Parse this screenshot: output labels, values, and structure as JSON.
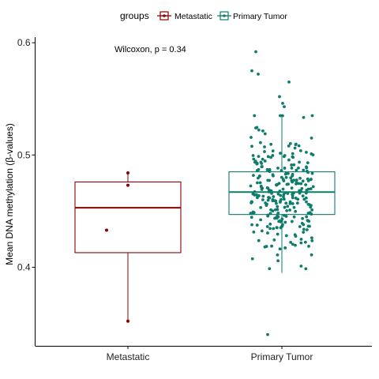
{
  "chart_data": {
    "type": "box",
    "legend": {
      "title": "groups",
      "position": "top",
      "entries": [
        {
          "name": "Metastatic",
          "color": "#8B0000"
        },
        {
          "name": "Primary Tumor",
          "color": "#0E7C6B"
        }
      ]
    },
    "annotation": "Wilcoxon, p = 0.34",
    "ylabel": "Mean DNA methylation (β-values)",
    "xlabel": "",
    "categories": [
      "Metastatic",
      "Primary Tumor"
    ],
    "ylim": [
      0.33,
      0.605
    ],
    "yticks": [
      0.4,
      0.5,
      0.6
    ],
    "ytick_labels": [
      "0.4",
      "0.5",
      "0.6"
    ],
    "grid": false,
    "series": [
      {
        "name": "Metastatic",
        "color": "#8B0000",
        "box": {
          "whisker_low": 0.352,
          "q1": 0.413,
          "median": 0.453,
          "q3": 0.476,
          "whisker_high": 0.484
        },
        "points": [
          0.484,
          0.473,
          0.433,
          0.352
        ]
      },
      {
        "name": "Primary Tumor",
        "color": "#0E7C6B",
        "box": {
          "whisker_low": 0.395,
          "q1": 0.447,
          "median": 0.467,
          "q3": 0.485,
          "whisker_high": 0.535
        },
        "outliers": [
          0.592,
          0.575,
          0.572,
          0.565,
          0.552,
          0.546,
          0.543,
          0.34
        ],
        "n_points": 300
      }
    ]
  }
}
